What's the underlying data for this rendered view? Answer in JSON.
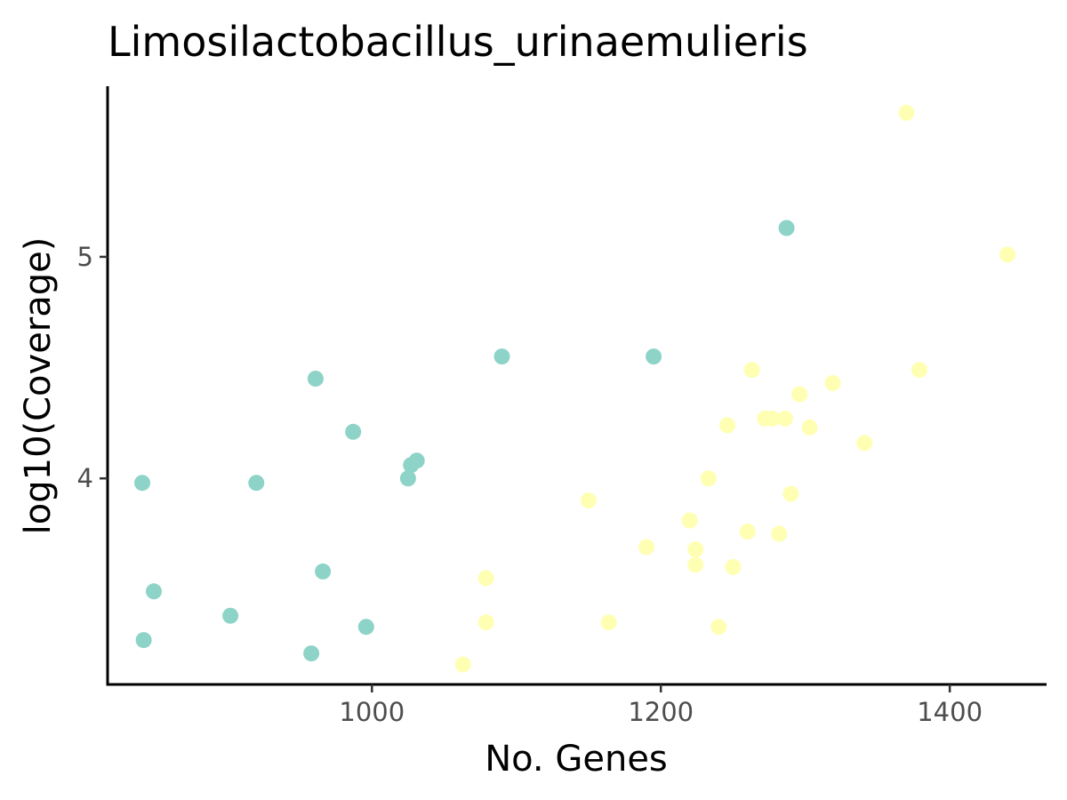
{
  "chart_data": {
    "type": "scatter",
    "title": "Limosilactobacillus_urinaemulieris",
    "xlabel": "No. Genes",
    "ylabel": "log10(Coverage)",
    "xlim": [
      817,
      1467
    ],
    "ylim": [
      3.07,
      5.77
    ],
    "x_ticks": [
      1000,
      1200,
      1400
    ],
    "y_ticks": [
      4,
      5
    ],
    "grid": false,
    "legend": "none",
    "series": [
      {
        "color": "#8dd3c7",
        "points": [
          [
            1287,
            5.13
          ],
          [
            1090,
            4.55
          ],
          [
            1195,
            4.55
          ],
          [
            961,
            4.45
          ],
          [
            987,
            4.21
          ],
          [
            1031,
            4.08
          ],
          [
            1027,
            4.06
          ],
          [
            1025,
            4.0
          ],
          [
            841,
            3.98
          ],
          [
            920,
            3.98
          ],
          [
            966,
            3.58
          ],
          [
            849,
            3.49
          ],
          [
            902,
            3.38
          ],
          [
            996,
            3.33
          ],
          [
            842,
            3.27
          ],
          [
            958,
            3.21
          ]
        ]
      },
      {
        "color": "#ffffb3",
        "points": [
          [
            1370,
            5.65
          ],
          [
            1440,
            5.01
          ],
          [
            1263,
            4.49
          ],
          [
            1379,
            4.49
          ],
          [
            1319,
            4.43
          ],
          [
            1296,
            4.38
          ],
          [
            1272,
            4.27
          ],
          [
            1277,
            4.27
          ],
          [
            1286,
            4.27
          ],
          [
            1246,
            4.24
          ],
          [
            1303,
            4.23
          ],
          [
            1341,
            4.16
          ],
          [
            1233,
            4.0
          ],
          [
            1290,
            3.93
          ],
          [
            1150,
            3.9
          ],
          [
            1220,
            3.81
          ],
          [
            1260,
            3.76
          ],
          [
            1282,
            3.75
          ],
          [
            1190,
            3.69
          ],
          [
            1224,
            3.68
          ],
          [
            1224,
            3.61
          ],
          [
            1250,
            3.6
          ],
          [
            1079,
            3.55
          ],
          [
            1079,
            3.35
          ],
          [
            1164,
            3.35
          ],
          [
            1240,
            3.33
          ],
          [
            1063,
            3.16
          ]
        ]
      }
    ]
  }
}
